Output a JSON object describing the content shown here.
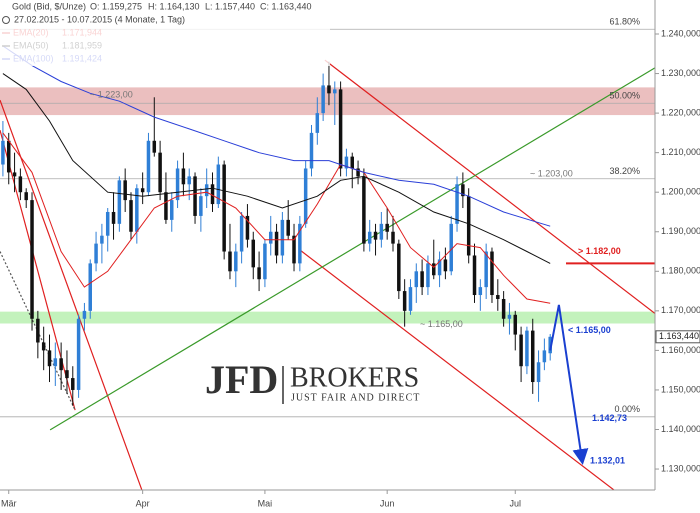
{
  "chart_data": {
    "type": "candlestick",
    "title": "Gold (Bid, $/Unze)",
    "header_values": [
      "O: 1.159,275",
      "H: 1.164,130",
      "L: 1.157,440",
      "C: 1.163,440"
    ],
    "subtitle": "27.02.2015 - 10.07.2015 (4 Monate, 1 Tag)",
    "up_color": "#2f7fd6",
    "down_color": "#111111",
    "open": [
      1.207,
      1.213,
      1.205,
      1.204,
      1.2,
      1.198,
      1.168,
      1.162,
      1.16,
      1.156,
      1.158,
      1.155,
      1.153,
      1.15,
      1.168,
      1.17,
      1.182,
      1.187,
      1.189,
      1.195,
      1.192,
      1.203,
      1.198,
      1.19,
      1.201,
      1.2,
      1.213,
      1.21,
      1.2,
      1.193,
      1.198,
      1.206,
      1.202,
      1.204,
      1.194,
      1.199,
      1.202,
      1.197,
      1.207,
      1.185,
      1.18,
      1.185,
      1.194,
      1.188,
      1.181,
      1.178,
      1.187,
      1.19,
      1.184,
      1.193,
      1.189,
      1.182,
      1.192,
      1.206,
      1.215,
      1.22,
      1.227,
      1.225,
      1.226,
      1.206,
      1.209,
      1.206,
      1.204,
      1.187,
      1.19,
      1.188,
      1.192,
      1.19,
      1.187,
      1.175,
      1.17,
      1.176,
      1.18,
      1.176,
      1.182,
      1.179,
      1.183,
      1.18,
      1.192,
      1.202,
      1.199,
      1.184,
      1.174,
      1.176,
      1.185,
      1.174,
      1.173,
      1.168,
      1.169,
      1.164,
      1.156,
      1.165,
      1.152,
      1.157,
      1.159275
    ],
    "high": [
      1.218,
      1.215,
      1.21,
      1.206,
      1.201,
      1.2,
      1.17,
      1.166,
      1.164,
      1.162,
      1.162,
      1.16,
      1.156,
      1.169,
      1.172,
      1.183,
      1.19,
      1.192,
      1.196,
      1.2,
      1.204,
      1.206,
      1.2,
      1.202,
      1.205,
      1.215,
      1.224,
      1.213,
      1.205,
      1.2,
      1.208,
      1.21,
      1.206,
      1.205,
      1.201,
      1.206,
      1.205,
      1.209,
      1.208,
      1.192,
      1.187,
      1.195,
      1.197,
      1.19,
      1.185,
      1.188,
      1.194,
      1.192,
      1.195,
      1.198,
      1.192,
      1.194,
      1.208,
      1.217,
      1.224,
      1.23,
      1.233,
      1.228,
      1.228,
      1.211,
      1.21,
      1.208,
      1.206,
      1.193,
      1.192,
      1.195,
      1.196,
      1.194,
      1.188,
      1.178,
      1.178,
      1.182,
      1.183,
      1.184,
      1.188,
      1.185,
      1.186,
      1.194,
      1.204,
      1.205,
      1.201,
      1.187,
      1.178,
      1.187,
      1.186,
      1.178,
      1.175,
      1.172,
      1.17,
      1.166,
      1.166,
      1.168,
      1.16,
      1.163,
      1.16413
    ],
    "low": [
      1.204,
      1.202,
      1.2,
      1.198,
      1.196,
      1.165,
      1.158,
      1.155,
      1.152,
      1.151,
      1.15,
      1.149,
      1.146,
      1.148,
      1.165,
      1.168,
      1.18,
      1.182,
      1.185,
      1.188,
      1.19,
      1.195,
      1.188,
      1.187,
      1.197,
      1.199,
      1.209,
      1.198,
      1.192,
      1.19,
      1.196,
      1.199,
      1.198,
      1.192,
      1.19,
      1.196,
      1.195,
      1.196,
      1.183,
      1.178,
      1.176,
      1.182,
      1.186,
      1.178,
      1.175,
      1.176,
      1.184,
      1.182,
      1.182,
      1.188,
      1.18,
      1.18,
      1.191,
      1.204,
      1.212,
      1.218,
      1.222,
      1.217,
      1.204,
      1.204,
      1.201,
      1.202,
      1.185,
      1.185,
      1.184,
      1.186,
      1.188,
      1.185,
      1.173,
      1.166,
      1.169,
      1.172,
      1.174,
      1.174,
      1.178,
      1.176,
      1.178,
      1.179,
      1.19,
      1.196,
      1.182,
      1.172,
      1.17,
      1.173,
      1.172,
      1.17,
      1.166,
      1.164,
      1.16,
      1.152,
      1.154,
      1.149,
      1.147,
      1.155,
      1.15744
    ],
    "close": [
      1.213,
      1.205,
      1.204,
      1.2,
      1.198,
      1.168,
      1.162,
      1.16,
      1.156,
      1.158,
      1.155,
      1.153,
      1.15,
      1.168,
      1.17,
      1.182,
      1.187,
      1.189,
      1.195,
      1.192,
      1.203,
      1.198,
      1.19,
      1.201,
      1.2,
      1.213,
      1.21,
      1.2,
      1.193,
      1.198,
      1.206,
      1.202,
      1.204,
      1.194,
      1.199,
      1.202,
      1.197,
      1.207,
      1.185,
      1.18,
      1.185,
      1.194,
      1.188,
      1.181,
      1.178,
      1.187,
      1.19,
      1.184,
      1.193,
      1.189,
      1.182,
      1.192,
      1.206,
      1.215,
      1.22,
      1.227,
      1.225,
      1.226,
      1.206,
      1.209,
      1.206,
      1.204,
      1.187,
      1.19,
      1.188,
      1.192,
      1.19,
      1.187,
      1.175,
      1.17,
      1.176,
      1.18,
      1.176,
      1.182,
      1.179,
      1.183,
      1.18,
      1.192,
      1.202,
      1.199,
      1.184,
      1.174,
      1.176,
      1.185,
      1.174,
      1.173,
      1.168,
      1.169,
      1.164,
      1.156,
      1.165,
      1.152,
      1.157,
      1.16,
      1.16344
    ],
    "series": [
      {
        "name": "EMA(20)",
        "legend_value": "1.171,944",
        "color": "#e02020",
        "x": [
          0,
          5,
          10,
          14,
          18,
          22,
          26,
          30,
          35,
          40,
          45,
          50,
          54,
          58,
          62,
          66,
          70,
          74,
          78,
          82,
          86,
          90,
          94
        ],
        "values": [
          1.215,
          1.205,
          1.185,
          1.176,
          1.18,
          1.188,
          1.196,
          1.199,
          1.2,
          1.196,
          1.188,
          1.188,
          1.197,
          1.207,
          1.205,
          1.196,
          1.186,
          1.181,
          1.187,
          1.186,
          1.179,
          1.173,
          1.1719
        ]
      },
      {
        "name": "EMA(50)",
        "legend_value": "1.181,959",
        "color": "#111111",
        "x": [
          0,
          4,
          8,
          12,
          18,
          24,
          30,
          36,
          42,
          48,
          54,
          58,
          62,
          68,
          74,
          80,
          86,
          90,
          94
        ],
        "values": [
          1.23,
          1.226,
          1.218,
          1.208,
          1.2,
          1.199,
          1.2,
          1.201,
          1.199,
          1.196,
          1.199,
          1.203,
          1.204,
          1.2,
          1.195,
          1.192,
          1.188,
          1.185,
          1.182
        ]
      },
      {
        "name": "EMA(100)",
        "legend_value": "1.191,424",
        "color": "#2a3fd8",
        "x": [
          0,
          5,
          10,
          15,
          20,
          26,
          32,
          38,
          44,
          50,
          56,
          62,
          68,
          74,
          80,
          86,
          94
        ],
        "values": [
          1.237,
          1.232,
          1.228,
          1.225,
          1.223,
          1.219,
          1.216,
          1.213,
          1.21,
          1.208,
          1.208,
          1.205,
          1.203,
          1.202,
          1.199,
          1.195,
          1.1914
        ]
      }
    ],
    "trendlines": [
      {
        "color": "#e02020",
        "dash": false,
        "x": [
          55.3,
          114.6
        ],
        "values": [
          1.2334,
          1.1664
        ]
      },
      {
        "color": "#e02020",
        "dash": false,
        "x": [
          51,
          109.5
        ],
        "values": [
          1.1854,
          1.1196
        ]
      },
      {
        "color": "#e02020",
        "dash": false,
        "x": [
          -0.5,
          25.3
        ],
        "values": [
          1.2233,
          1.1189
        ]
      },
      {
        "color": "#e02020",
        "dash": false,
        "x": [
          -0.5,
          12.4
        ],
        "values": [
          1.2157,
          1.1449
        ]
      },
      {
        "color": "#555555",
        "dash": true,
        "x": [
          -0.5,
          12.4
        ],
        "values": [
          1.185,
          1.1449
        ]
      },
      {
        "color": "#3a9a2a",
        "dash": false,
        "x": [
          8.1,
          120
        ],
        "values": [
          1.1399,
          1.2385
        ]
      }
    ],
    "projection": {
      "color": "#1a3fd0",
      "x": [
        94,
        95.5,
        99.5
      ],
      "values": [
        1.16,
        1.1715,
        1.132
      ]
    },
    "zones": [
      {
        "from": 1.2195,
        "to": 1.2265,
        "color": "#e8b4b4"
      },
      {
        "from": 1.1668,
        "to": 1.1698,
        "color": "#b8f0b0"
      }
    ],
    "fibonacci": [
      {
        "value": 1.2412,
        "label": "61.80%"
      },
      {
        "value": 1.2225,
        "label": "50.00%"
      },
      {
        "value": 1.2034,
        "label": "38.20%"
      },
      {
        "value": 1.1432,
        "label": "0.00%"
      }
    ],
    "levels": [
      {
        "value": 1.223,
        "label": "~ 1.223,00"
      },
      {
        "value": 1.203,
        "label": "~ 1.203,00"
      },
      {
        "value": 1.165,
        "label": "~ 1.165,00"
      }
    ],
    "targets": [
      {
        "value": 1.182,
        "label": "> 1.182,00",
        "color": "#e02020",
        "line": true
      },
      {
        "value": 1.165,
        "label": "< 1.165,00",
        "color": "#1a3fd0",
        "line": false
      },
      {
        "value": 1.14273,
        "label": "1.142,73",
        "color": "#1a3fd0",
        "line": false
      },
      {
        "value": 1.13201,
        "label": "1.132,01",
        "color": "#1a3fd0",
        "line": false
      }
    ],
    "last_price": {
      "value": 1.16344,
      "label": "1.163,440"
    },
    "xlim": [
      -0.5,
      112
    ],
    "xticks": [
      {
        "value": 1,
        "label": "Mär"
      },
      {
        "value": 24,
        "label": "Apr"
      },
      {
        "value": 45,
        "label": "Mai"
      },
      {
        "value": 66,
        "label": "Jun"
      },
      {
        "value": 88,
        "label": "Jul"
      }
    ],
    "ylim": [
      1.1247,
      1.2486
    ],
    "yticks": [
      {
        "value": 1.13,
        "label": "1.130,000"
      },
      {
        "value": 1.14,
        "label": "1.140,000"
      },
      {
        "value": 1.15,
        "label": "1.150,000"
      },
      {
        "value": 1.16,
        "label": "1.160,000"
      },
      {
        "value": 1.17,
        "label": "1.170,000"
      },
      {
        "value": 1.18,
        "label": "1.180,000"
      },
      {
        "value": 1.19,
        "label": "1.190,000"
      },
      {
        "value": 1.2,
        "label": "1.200,000"
      },
      {
        "value": 1.21,
        "label": "1.210,000"
      },
      {
        "value": 1.22,
        "label": "1.220,000"
      },
      {
        "value": 1.23,
        "label": "1.230,000"
      },
      {
        "value": 1.24,
        "label": "1.240,000"
      }
    ]
  },
  "watermark": {
    "brand": "JFD",
    "name": "BROKERS",
    "tagline": "JUST FAIR AND DIRECT"
  }
}
